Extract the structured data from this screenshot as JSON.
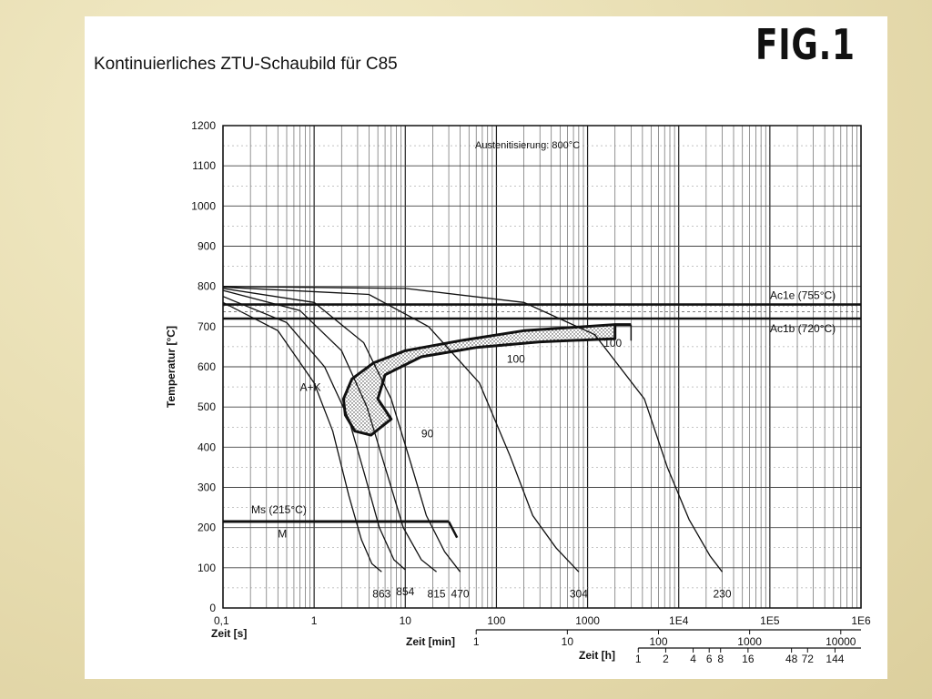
{
  "figure_label": "FIG.1",
  "title": "Kontinuierliches ZTU-Schaubild für C85",
  "chart_data": {
    "type": "line",
    "x_scale": "log",
    "xlim": [
      0.1,
      1000000
    ],
    "ylim": [
      0,
      1200
    ],
    "grid": true,
    "ylabel": "Temperatur [°C]",
    "y_ticks": [
      "0",
      "100",
      "200",
      "300",
      "400",
      "500",
      "600",
      "700",
      "800",
      "900",
      "1000",
      "1100",
      "1200"
    ],
    "x_axes": [
      {
        "label": "Zeit [s]",
        "ticks": [
          {
            "v": 0.1,
            "t": "0,1"
          },
          {
            "v": 1,
            "t": "1"
          },
          {
            "v": 10,
            "t": "10"
          },
          {
            "v": 100,
            "t": "100"
          },
          {
            "v": 1000,
            "t": "1000"
          },
          {
            "v": 10000,
            "t": "1E4"
          },
          {
            "v": 100000,
            "t": "1E5"
          },
          {
            "v": 1000000,
            "t": "1E6"
          }
        ]
      },
      {
        "label": "Zeit [min]",
        "ticks": [
          {
            "v": 60,
            "t": "1"
          },
          {
            "v": 600,
            "t": "10"
          },
          {
            "v": 6000,
            "t": "100"
          },
          {
            "v": 60000,
            "t": "1000"
          },
          {
            "v": 600000,
            "t": "10000"
          }
        ]
      },
      {
        "label": "Zeit [h]",
        "ticks": [
          {
            "v": 3600,
            "t": "1"
          },
          {
            "v": 7200,
            "t": "2"
          },
          {
            "v": 14400,
            "t": "4"
          },
          {
            "v": 21600,
            "t": "6"
          },
          {
            "v": 28800,
            "t": "8"
          },
          {
            "v": 57600,
            "t": "16"
          },
          {
            "v": 172800,
            "t": "48"
          },
          {
            "v": 259200,
            "t": "72"
          },
          {
            "v": 518400,
            "t": "144"
          }
        ]
      }
    ],
    "annotation": "Austenitisierung: 800°C",
    "reference_lines": [
      {
        "name": "Ac1e (755°C)",
        "y": 755
      },
      {
        "name": "Ac1b (720°C)",
        "y": 720
      },
      {
        "name": "Ms (215°C)",
        "y": 215
      }
    ],
    "region_labels": [
      {
        "text": "A+K",
        "x": 0.7,
        "y": 540
      },
      {
        "text": "M",
        "x": 0.4,
        "y": 175
      }
    ],
    "phase_labels": [
      {
        "text": "100",
        "x": 130,
        "y": 610
      },
      {
        "text": "100",
        "x": 1500,
        "y": 650
      },
      {
        "text": "90",
        "x": 15,
        "y": 425
      }
    ],
    "cooling_curves": [
      {
        "hardness": "863",
        "points": [
          [
            0.1,
            760
          ],
          [
            0.4,
            690
          ],
          [
            1,
            560
          ],
          [
            1.6,
            440
          ],
          [
            2.4,
            280
          ],
          [
            3.3,
            170
          ],
          [
            4.3,
            110
          ],
          [
            5.5,
            90
          ]
        ]
      },
      {
        "hardness": "854",
        "points": [
          [
            0.1,
            775
          ],
          [
            0.5,
            710
          ],
          [
            1.3,
            600
          ],
          [
            2.4,
            470
          ],
          [
            3.6,
            330
          ],
          [
            5.2,
            200
          ],
          [
            7.5,
            120
          ],
          [
            10,
            95
          ]
        ]
      },
      {
        "hardness": "815",
        "points": [
          [
            0.1,
            790
          ],
          [
            0.7,
            740
          ],
          [
            2,
            640
          ],
          [
            3.8,
            500
          ],
          [
            6.2,
            340
          ],
          [
            9.5,
            200
          ],
          [
            15,
            120
          ],
          [
            22,
            90
          ]
        ]
      },
      {
        "hardness": "470",
        "points": [
          [
            0.1,
            795
          ],
          [
            1,
            760
          ],
          [
            3.5,
            660
          ],
          [
            7,
            520
          ],
          [
            11.5,
            360
          ],
          [
            17,
            230
          ],
          [
            27,
            140
          ],
          [
            40,
            90
          ]
        ]
      },
      {
        "hardness": "304",
        "points": [
          [
            0.1,
            798
          ],
          [
            4,
            780
          ],
          [
            18,
            700
          ],
          [
            65,
            560
          ],
          [
            140,
            380
          ],
          [
            250,
            230
          ],
          [
            450,
            150
          ],
          [
            800,
            90
          ]
        ]
      },
      {
        "hardness": "230",
        "points": [
          [
            0.1,
            800
          ],
          [
            10,
            795
          ],
          [
            200,
            760
          ],
          [
            1200,
            680
          ],
          [
            4200,
            520
          ],
          [
            7500,
            350
          ],
          [
            13000,
            220
          ],
          [
            22000,
            130
          ],
          [
            30000,
            90
          ]
        ]
      }
    ],
    "curve_labels": [
      "863",
      "854",
      "815",
      "470",
      "304",
      "230"
    ]
  }
}
